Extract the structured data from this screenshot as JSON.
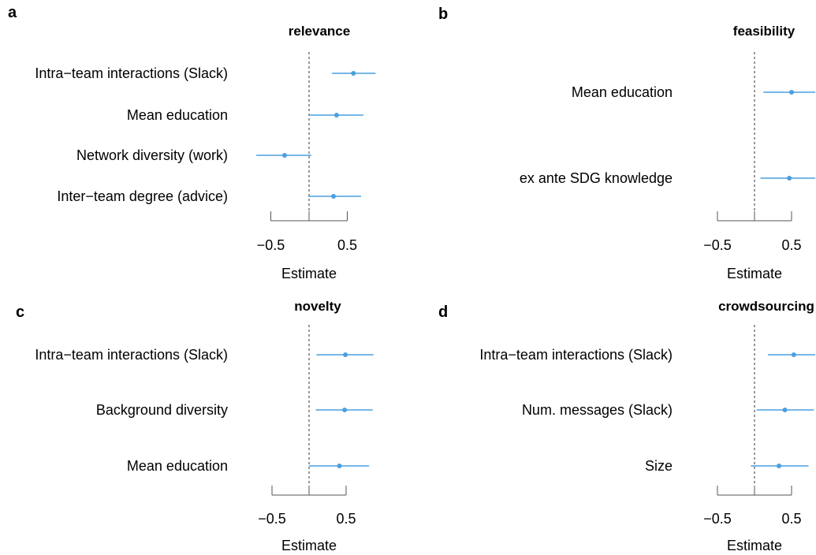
{
  "accent_color": "#4A9FE0",
  "chart_data": [
    {
      "type": "forest",
      "letter": "a",
      "title": "relevance",
      "xlabel": "Estimate",
      "xticks": [
        -0.5,
        0.5
      ],
      "xtick_labels": [
        "−0.5",
        "0.5"
      ],
      "xlim": [
        -0.5,
        0.5
      ],
      "reference_line": 0,
      "rows": [
        {
          "label": "Intra−team interactions (Slack)",
          "estimate": 0.58,
          "lower": 0.3,
          "upper": 0.87
        },
        {
          "label": "Mean education",
          "estimate": 0.36,
          "lower": 0.0,
          "upper": 0.71
        },
        {
          "label": "Network diversity (work)",
          "estimate": -0.32,
          "lower": -0.69,
          "upper": 0.03
        },
        {
          "label": "Inter−team degree (advice)",
          "estimate": 0.32,
          "lower": -0.01,
          "upper": 0.68
        }
      ]
    },
    {
      "type": "forest",
      "letter": "b",
      "title": "feasibility",
      "xlabel": "Estimate",
      "xticks": [
        -0.5,
        0.5
      ],
      "xtick_labels": [
        "−0.5",
        "0.5"
      ],
      "xlim": [
        -0.5,
        0.5
      ],
      "reference_line": 0,
      "rows": [
        {
          "label": "Mean education",
          "estimate": 0.5,
          "lower": 0.12,
          "upper": 0.82
        },
        {
          "label": "ex ante SDG knowledge",
          "estimate": 0.47,
          "lower": 0.08,
          "upper": 0.82
        }
      ]
    },
    {
      "type": "forest",
      "letter": "c",
      "title": "novelty",
      "xlabel": "Estimate",
      "xticks": [
        -0.5,
        0.5
      ],
      "xtick_labels": [
        "−0.5",
        "0.5"
      ],
      "xlim": [
        -0.5,
        0.5
      ],
      "reference_line": 0,
      "rows": [
        {
          "label": "Intra−team interactions (Slack)",
          "estimate": 0.49,
          "lower": 0.1,
          "upper": 0.87
        },
        {
          "label": "Background diversity",
          "estimate": 0.48,
          "lower": 0.09,
          "upper": 0.86
        },
        {
          "label": "Mean education",
          "estimate": 0.41,
          "lower": 0.0,
          "upper": 0.81
        }
      ]
    },
    {
      "type": "forest",
      "letter": "d",
      "title": "crowdsourcing",
      "xlabel": "Estimate",
      "xticks": [
        -0.5,
        0.5
      ],
      "xtick_labels": [
        "−0.5",
        "0.5"
      ],
      "xlim": [
        -0.5,
        0.5
      ],
      "reference_line": 0,
      "rows": [
        {
          "label": "Intra−team interactions (Slack)",
          "estimate": 0.53,
          "lower": 0.18,
          "upper": 0.82
        },
        {
          "label": "Num. messages (Slack)",
          "estimate": 0.41,
          "lower": 0.03,
          "upper": 0.8
        },
        {
          "label": "Size",
          "estimate": 0.33,
          "lower": -0.05,
          "upper": 0.73
        }
      ]
    }
  ]
}
